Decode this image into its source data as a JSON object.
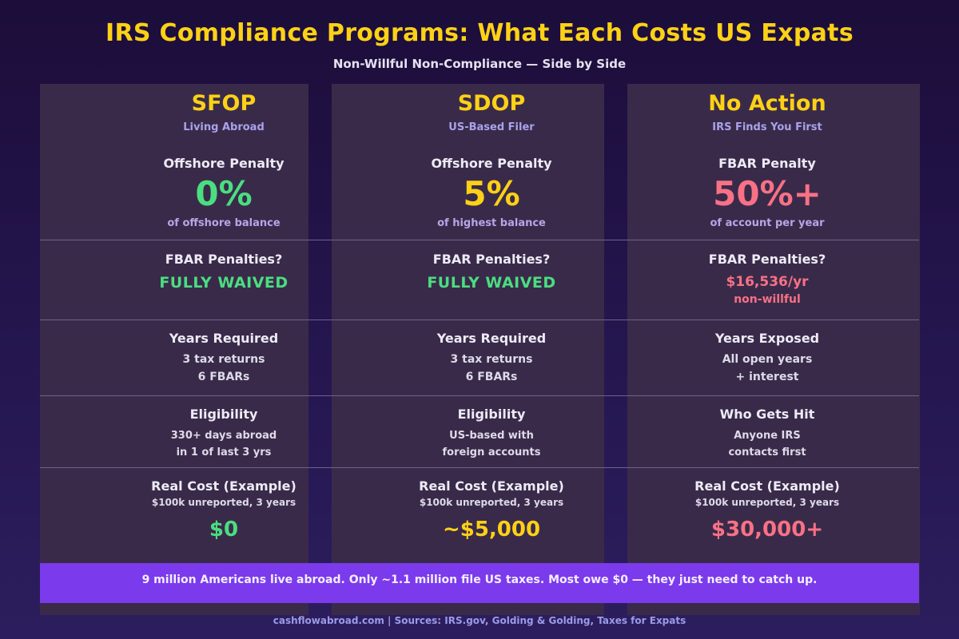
{
  "title": "IRS Compliance Programs: What Each Costs US Expats",
  "subtitle": "Non-Willful Non-Compliance — Side by Side",
  "colors": {
    "accent_yellow": "#fcd116",
    "good_green": "#4ade80",
    "bad_red": "#f87185",
    "banner_purple": "#7c3aed"
  },
  "columns": [
    {
      "name": "SFOP",
      "subtitle": "Living Abroad",
      "penalty_label": "Offshore Penalty",
      "penalty_value": "0%",
      "penalty_note": "of offshore balance",
      "fbar_label": "FBAR Penalties?",
      "fbar_value": "FULLY WAIVED",
      "fbar_note": "",
      "years_label": "Years Required",
      "years_line1": "3 tax returns",
      "years_line2": "6 FBARs",
      "elig_label": "Eligibility",
      "elig_line1": "330+ days abroad",
      "elig_line2": "in 1 of last 3 yrs",
      "cost_label": "Real Cost (Example)",
      "cost_example": "$100k unreported, 3 years",
      "cost_value": "$0"
    },
    {
      "name": "SDOP",
      "subtitle": "US-Based Filer",
      "penalty_label": "Offshore Penalty",
      "penalty_value": "5%",
      "penalty_note": "of highest balance",
      "fbar_label": "FBAR Penalties?",
      "fbar_value": "FULLY WAIVED",
      "fbar_note": "",
      "years_label": "Years Required",
      "years_line1": "3 tax returns",
      "years_line2": "6 FBARs",
      "elig_label": "Eligibility",
      "elig_line1": "US-based with",
      "elig_line2": "foreign accounts",
      "cost_label": "Real Cost (Example)",
      "cost_example": "$100k unreported, 3 years",
      "cost_value": "~$5,000"
    },
    {
      "name": "No Action",
      "subtitle": "IRS Finds You First",
      "penalty_label": "FBAR Penalty",
      "penalty_value": "50%+",
      "penalty_note": "of account per year",
      "fbar_label": "FBAR Penalties?",
      "fbar_value": "$16,536/yr",
      "fbar_note": "non-willful",
      "years_label": "Years Exposed",
      "years_line1": "All open years",
      "years_line2": "+ interest",
      "elig_label": "Who Gets Hit",
      "elig_line1": "Anyone IRS",
      "elig_line2": "contacts first",
      "cost_label": "Real Cost (Example)",
      "cost_example": "$100k unreported, 3 years",
      "cost_value": "$30,000+"
    }
  ],
  "banner": "9 million Americans live abroad. Only ~1.1 million file US taxes. Most owe $0 — they just need to catch up.",
  "footer": "cashflowabroad.com  |  Sources: IRS.gov, Golding & Golding, Taxes for Expats"
}
